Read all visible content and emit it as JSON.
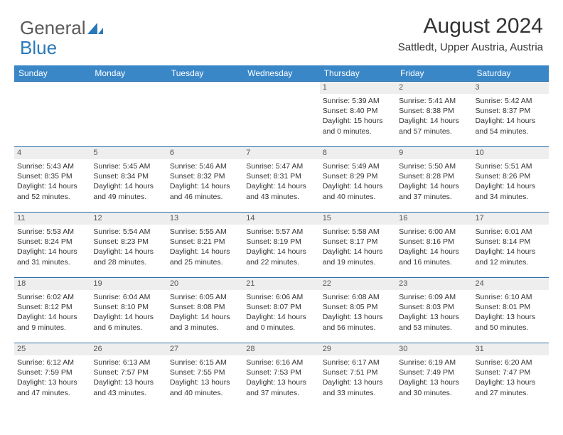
{
  "logo": {
    "part1": "General",
    "part2": "Blue"
  },
  "title": "August 2024",
  "subtitle": "Sattledt, Upper Austria, Austria",
  "colors": {
    "header_bg": "#3a87c8",
    "header_text": "#ffffff",
    "rule": "#2a6fa8",
    "daynum_bg": "#eeeeee",
    "text": "#333333",
    "logo_gray": "#5a5a5a",
    "logo_blue": "#2a7ab9"
  },
  "typography": {
    "title_fontsize": 30,
    "subtitle_fontsize": 15,
    "dayheader_fontsize": 12,
    "daynum_fontsize": 11,
    "body_fontsize": 10.5
  },
  "day_names": [
    "Sunday",
    "Monday",
    "Tuesday",
    "Wednesday",
    "Thursday",
    "Friday",
    "Saturday"
  ],
  "weeks": [
    [
      null,
      null,
      null,
      null,
      {
        "n": "1",
        "sunrise": "Sunrise: 5:39 AM",
        "sunset": "Sunset: 8:40 PM",
        "daylight": "Daylight: 15 hours and 0 minutes."
      },
      {
        "n": "2",
        "sunrise": "Sunrise: 5:41 AM",
        "sunset": "Sunset: 8:38 PM",
        "daylight": "Daylight: 14 hours and 57 minutes."
      },
      {
        "n": "3",
        "sunrise": "Sunrise: 5:42 AM",
        "sunset": "Sunset: 8:37 PM",
        "daylight": "Daylight: 14 hours and 54 minutes."
      }
    ],
    [
      {
        "n": "4",
        "sunrise": "Sunrise: 5:43 AM",
        "sunset": "Sunset: 8:35 PM",
        "daylight": "Daylight: 14 hours and 52 minutes."
      },
      {
        "n": "5",
        "sunrise": "Sunrise: 5:45 AM",
        "sunset": "Sunset: 8:34 PM",
        "daylight": "Daylight: 14 hours and 49 minutes."
      },
      {
        "n": "6",
        "sunrise": "Sunrise: 5:46 AM",
        "sunset": "Sunset: 8:32 PM",
        "daylight": "Daylight: 14 hours and 46 minutes."
      },
      {
        "n": "7",
        "sunrise": "Sunrise: 5:47 AM",
        "sunset": "Sunset: 8:31 PM",
        "daylight": "Daylight: 14 hours and 43 minutes."
      },
      {
        "n": "8",
        "sunrise": "Sunrise: 5:49 AM",
        "sunset": "Sunset: 8:29 PM",
        "daylight": "Daylight: 14 hours and 40 minutes."
      },
      {
        "n": "9",
        "sunrise": "Sunrise: 5:50 AM",
        "sunset": "Sunset: 8:28 PM",
        "daylight": "Daylight: 14 hours and 37 minutes."
      },
      {
        "n": "10",
        "sunrise": "Sunrise: 5:51 AM",
        "sunset": "Sunset: 8:26 PM",
        "daylight": "Daylight: 14 hours and 34 minutes."
      }
    ],
    [
      {
        "n": "11",
        "sunrise": "Sunrise: 5:53 AM",
        "sunset": "Sunset: 8:24 PM",
        "daylight": "Daylight: 14 hours and 31 minutes."
      },
      {
        "n": "12",
        "sunrise": "Sunrise: 5:54 AM",
        "sunset": "Sunset: 8:23 PM",
        "daylight": "Daylight: 14 hours and 28 minutes."
      },
      {
        "n": "13",
        "sunrise": "Sunrise: 5:55 AM",
        "sunset": "Sunset: 8:21 PM",
        "daylight": "Daylight: 14 hours and 25 minutes."
      },
      {
        "n": "14",
        "sunrise": "Sunrise: 5:57 AM",
        "sunset": "Sunset: 8:19 PM",
        "daylight": "Daylight: 14 hours and 22 minutes."
      },
      {
        "n": "15",
        "sunrise": "Sunrise: 5:58 AM",
        "sunset": "Sunset: 8:17 PM",
        "daylight": "Daylight: 14 hours and 19 minutes."
      },
      {
        "n": "16",
        "sunrise": "Sunrise: 6:00 AM",
        "sunset": "Sunset: 8:16 PM",
        "daylight": "Daylight: 14 hours and 16 minutes."
      },
      {
        "n": "17",
        "sunrise": "Sunrise: 6:01 AM",
        "sunset": "Sunset: 8:14 PM",
        "daylight": "Daylight: 14 hours and 12 minutes."
      }
    ],
    [
      {
        "n": "18",
        "sunrise": "Sunrise: 6:02 AM",
        "sunset": "Sunset: 8:12 PM",
        "daylight": "Daylight: 14 hours and 9 minutes."
      },
      {
        "n": "19",
        "sunrise": "Sunrise: 6:04 AM",
        "sunset": "Sunset: 8:10 PM",
        "daylight": "Daylight: 14 hours and 6 minutes."
      },
      {
        "n": "20",
        "sunrise": "Sunrise: 6:05 AM",
        "sunset": "Sunset: 8:08 PM",
        "daylight": "Daylight: 14 hours and 3 minutes."
      },
      {
        "n": "21",
        "sunrise": "Sunrise: 6:06 AM",
        "sunset": "Sunset: 8:07 PM",
        "daylight": "Daylight: 14 hours and 0 minutes."
      },
      {
        "n": "22",
        "sunrise": "Sunrise: 6:08 AM",
        "sunset": "Sunset: 8:05 PM",
        "daylight": "Daylight: 13 hours and 56 minutes."
      },
      {
        "n": "23",
        "sunrise": "Sunrise: 6:09 AM",
        "sunset": "Sunset: 8:03 PM",
        "daylight": "Daylight: 13 hours and 53 minutes."
      },
      {
        "n": "24",
        "sunrise": "Sunrise: 6:10 AM",
        "sunset": "Sunset: 8:01 PM",
        "daylight": "Daylight: 13 hours and 50 minutes."
      }
    ],
    [
      {
        "n": "25",
        "sunrise": "Sunrise: 6:12 AM",
        "sunset": "Sunset: 7:59 PM",
        "daylight": "Daylight: 13 hours and 47 minutes."
      },
      {
        "n": "26",
        "sunrise": "Sunrise: 6:13 AM",
        "sunset": "Sunset: 7:57 PM",
        "daylight": "Daylight: 13 hours and 43 minutes."
      },
      {
        "n": "27",
        "sunrise": "Sunrise: 6:15 AM",
        "sunset": "Sunset: 7:55 PM",
        "daylight": "Daylight: 13 hours and 40 minutes."
      },
      {
        "n": "28",
        "sunrise": "Sunrise: 6:16 AM",
        "sunset": "Sunset: 7:53 PM",
        "daylight": "Daylight: 13 hours and 37 minutes."
      },
      {
        "n": "29",
        "sunrise": "Sunrise: 6:17 AM",
        "sunset": "Sunset: 7:51 PM",
        "daylight": "Daylight: 13 hours and 33 minutes."
      },
      {
        "n": "30",
        "sunrise": "Sunrise: 6:19 AM",
        "sunset": "Sunset: 7:49 PM",
        "daylight": "Daylight: 13 hours and 30 minutes."
      },
      {
        "n": "31",
        "sunrise": "Sunrise: 6:20 AM",
        "sunset": "Sunset: 7:47 PM",
        "daylight": "Daylight: 13 hours and 27 minutes."
      }
    ]
  ]
}
